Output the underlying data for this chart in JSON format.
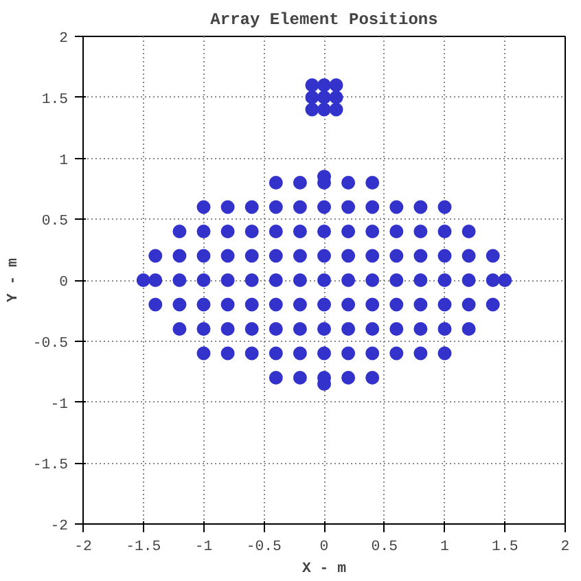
{
  "chart_data": {
    "type": "scatter",
    "title": "Array Element Positions",
    "xlabel": "X - m",
    "ylabel": "Y - m",
    "xlim": [
      -2,
      2
    ],
    "ylim": [
      -2,
      2
    ],
    "xticks": [
      -2,
      -1.5,
      -1,
      -0.5,
      0,
      0.5,
      1,
      1.5,
      2
    ],
    "yticks": [
      -2,
      -1.5,
      -1,
      -0.5,
      0,
      0.5,
      1,
      1.5,
      2
    ],
    "grid": true,
    "marker": "circle",
    "series": [
      {
        "color": "#3333cc",
        "x": [
          0,
          -0.4,
          -0.2,
          0,
          0.2,
          0.4,
          -1,
          -0.8,
          -0.6,
          -0.4,
          -0.2,
          0,
          0.2,
          0.4,
          0.6,
          0.8,
          1,
          -1.2,
          -1,
          -0.8,
          -0.6,
          -0.4,
          -0.2,
          0,
          0.2,
          0.4,
          0.6,
          0.8,
          1,
          1.2,
          -1.4,
          -1.2,
          -1,
          -0.8,
          -0.6,
          -0.4,
          -0.2,
          0,
          0.2,
          0.4,
          0.6,
          0.8,
          1,
          1.2,
          1.4,
          -1.5,
          -1.4,
          -1.2,
          -1,
          -0.8,
          -0.6,
          -0.4,
          -0.2,
          0,
          0.2,
          0.4,
          0.6,
          0.8,
          1,
          1.2,
          1.4,
          1.5,
          -1.4,
          -1.2,
          -1,
          -0.8,
          -0.6,
          -0.4,
          -0.2,
          0,
          0.2,
          0.4,
          0.6,
          0.8,
          1,
          1.2,
          1.4,
          -1.2,
          -1,
          -0.8,
          -0.6,
          -0.4,
          -0.2,
          0,
          0.2,
          0.4,
          0.6,
          0.8,
          1,
          1.2,
          -1,
          -0.8,
          -0.6,
          -0.4,
          -0.2,
          0,
          0.2,
          0.4,
          0.6,
          0.8,
          1,
          -0.4,
          -0.2,
          0,
          0.2,
          0.4,
          0
        ],
        "values": [
          0.85,
          0.8,
          0.8,
          0.8,
          0.8,
          0.8,
          0.6,
          0.6,
          0.6,
          0.6,
          0.6,
          0.6,
          0.6,
          0.6,
          0.6,
          0.6,
          0.6,
          0.4,
          0.4,
          0.4,
          0.4,
          0.4,
          0.4,
          0.4,
          0.4,
          0.4,
          0.4,
          0.4,
          0.4,
          0.4,
          0.2,
          0.2,
          0.2,
          0.2,
          0.2,
          0.2,
          0.2,
          0.2,
          0.2,
          0.2,
          0.2,
          0.2,
          0.2,
          0.2,
          0.2,
          0,
          0,
          0,
          0,
          0,
          0,
          0,
          0,
          0,
          0,
          0,
          0,
          0,
          0,
          0,
          0,
          0,
          -0.2,
          -0.2,
          -0.2,
          -0.2,
          -0.2,
          -0.2,
          -0.2,
          -0.2,
          -0.2,
          -0.2,
          -0.2,
          -0.2,
          -0.2,
          -0.2,
          -0.2,
          -0.4,
          -0.4,
          -0.4,
          -0.4,
          -0.4,
          -0.4,
          -0.4,
          -0.4,
          -0.4,
          -0.4,
          -0.4,
          -0.4,
          -0.4,
          -0.6,
          -0.6,
          -0.6,
          -0.6,
          -0.6,
          -0.6,
          -0.6,
          -0.6,
          -0.6,
          -0.6,
          -0.6,
          -0.8,
          -0.8,
          -0.8,
          -0.8,
          -0.8,
          -0.85
        ]
      },
      {
        "color": "#3333cc",
        "x": [
          -0.1,
          0,
          0.1,
          -0.1,
          0,
          0.1,
          -0.1,
          0,
          0.1
        ],
        "values": [
          1.6,
          1.6,
          1.6,
          1.5,
          1.5,
          1.5,
          1.4,
          1.4,
          1.4
        ]
      }
    ]
  }
}
